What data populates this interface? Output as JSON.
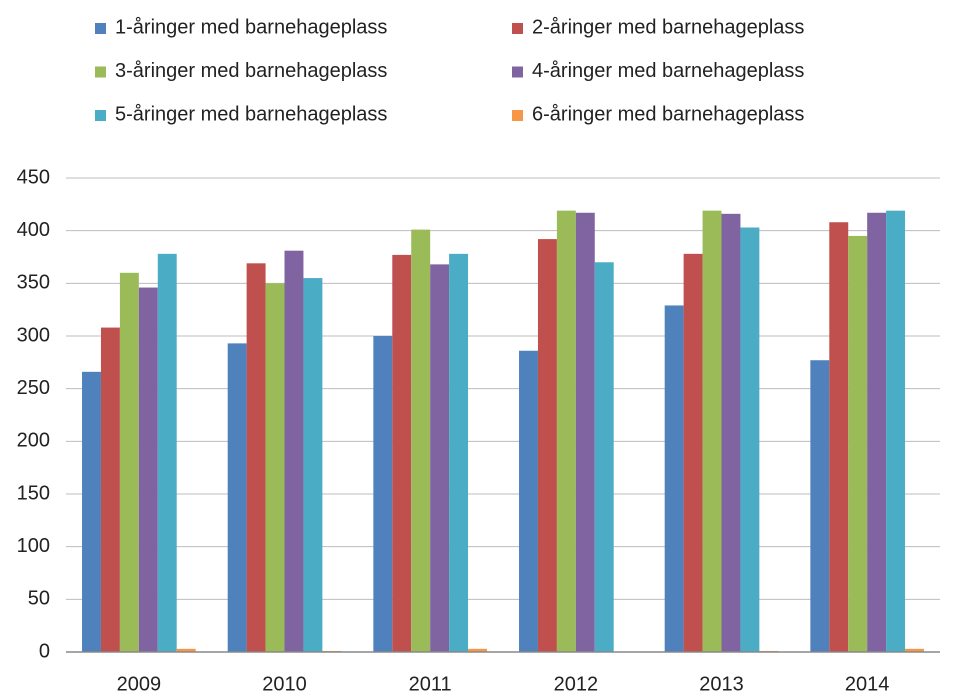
{
  "chart_data": {
    "type": "bar",
    "categories": [
      "2009",
      "2010",
      "2011",
      "2012",
      "2013",
      "2014"
    ],
    "series": [
      {
        "name": "1-åringer med barnehageplass",
        "color": "#4F81BD",
        "values": [
          266,
          293,
          300,
          286,
          329,
          277
        ]
      },
      {
        "name": "2-åringer med barnehageplass",
        "color": "#C0504D",
        "values": [
          308,
          369,
          377,
          392,
          378,
          408
        ]
      },
      {
        "name": "3-åringer med barnehageplass",
        "color": "#9BBB59",
        "values": [
          360,
          350,
          401,
          419,
          419,
          395
        ]
      },
      {
        "name": "4-åringer med barnehageplass",
        "color": "#8064A2",
        "values": [
          346,
          381,
          368,
          417,
          416,
          417
        ]
      },
      {
        "name": "5-åringer med barnehageplass",
        "color": "#4BACC6",
        "values": [
          378,
          355,
          378,
          370,
          403,
          419
        ]
      },
      {
        "name": "6-åringer med barnehageplass",
        "color": "#F79646",
        "values": [
          3,
          1,
          3,
          0,
          1,
          3
        ]
      }
    ],
    "ylim": [
      0,
      450
    ],
    "yticks": [
      0,
      50,
      100,
      150,
      200,
      250,
      300,
      350,
      400,
      450
    ],
    "grid": true,
    "legend": "top"
  }
}
